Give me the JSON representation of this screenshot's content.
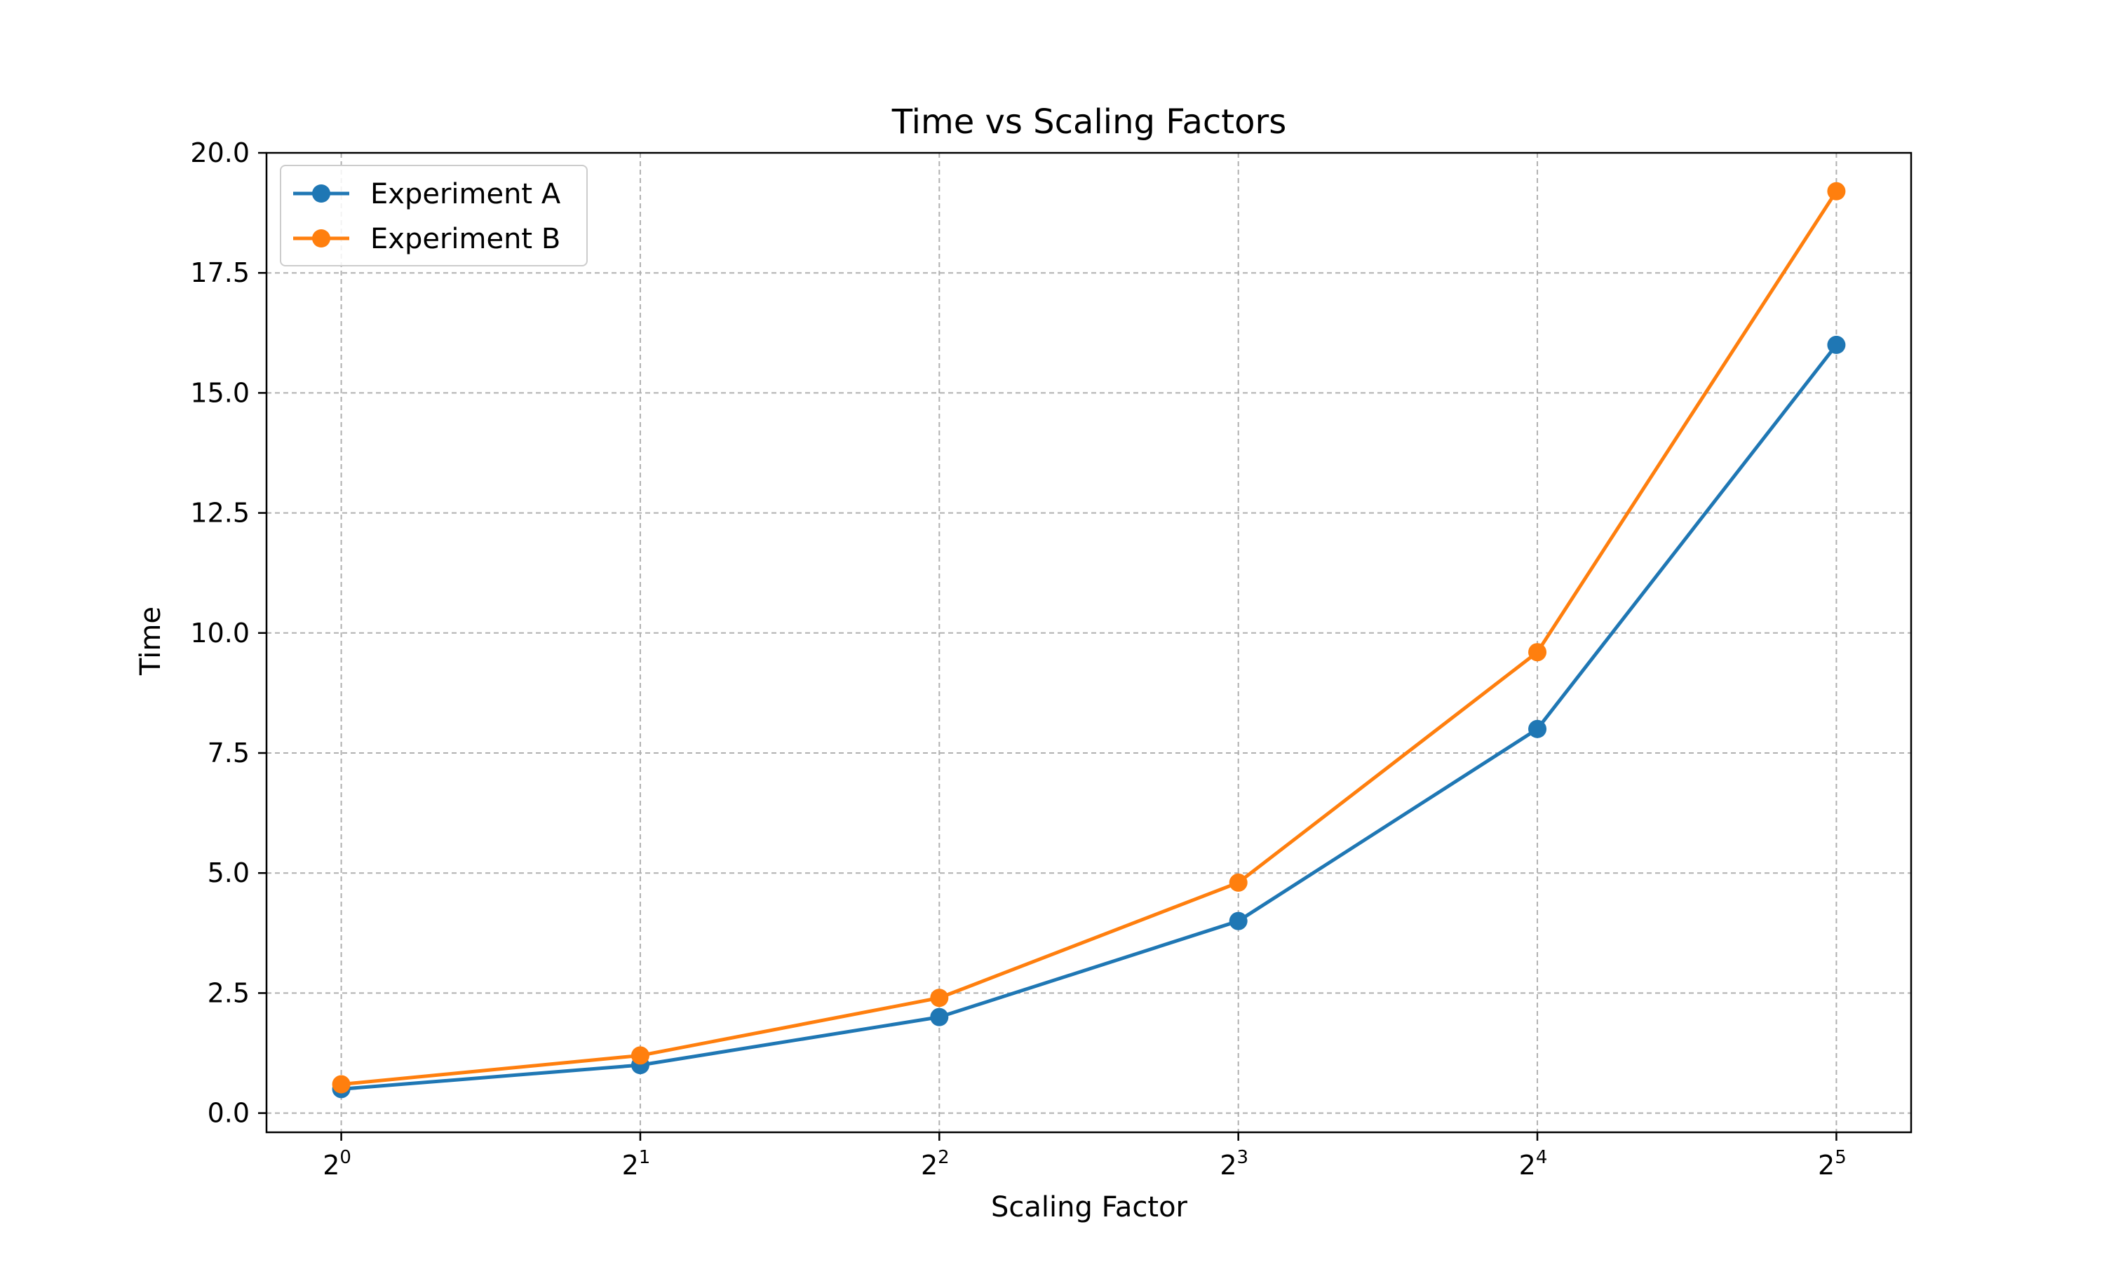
{
  "chart_data": {
    "type": "line",
    "title": "Time vs Scaling Factors",
    "xlabel": "Scaling Factor",
    "ylabel": "Time",
    "x_scale": "log2",
    "x": [
      1,
      2,
      4,
      8,
      16,
      32
    ],
    "x_tick_labels": [
      {
        "base": "2",
        "exp": "0"
      },
      {
        "base": "2",
        "exp": "1"
      },
      {
        "base": "2",
        "exp": "2"
      },
      {
        "base": "2",
        "exp": "3"
      },
      {
        "base": "2",
        "exp": "4"
      },
      {
        "base": "2",
        "exp": "5"
      }
    ],
    "ylim": [
      -0.4,
      20.0
    ],
    "y_ticks": [
      "0.0",
      "2.5",
      "5.0",
      "7.5",
      "10.0",
      "12.5",
      "15.0",
      "17.5",
      "20.0"
    ],
    "grid": true,
    "legend_position": "top-left",
    "series": [
      {
        "name": "Experiment A",
        "color": "#1f77b4",
        "marker": "circle",
        "values": [
          0.5,
          1.0,
          2.0,
          4.0,
          8.0,
          16.0
        ]
      },
      {
        "name": "Experiment B",
        "color": "#ff7f0e",
        "marker": "circle",
        "values": [
          0.6,
          1.2,
          2.4,
          4.8,
          9.6,
          19.2
        ]
      }
    ]
  }
}
